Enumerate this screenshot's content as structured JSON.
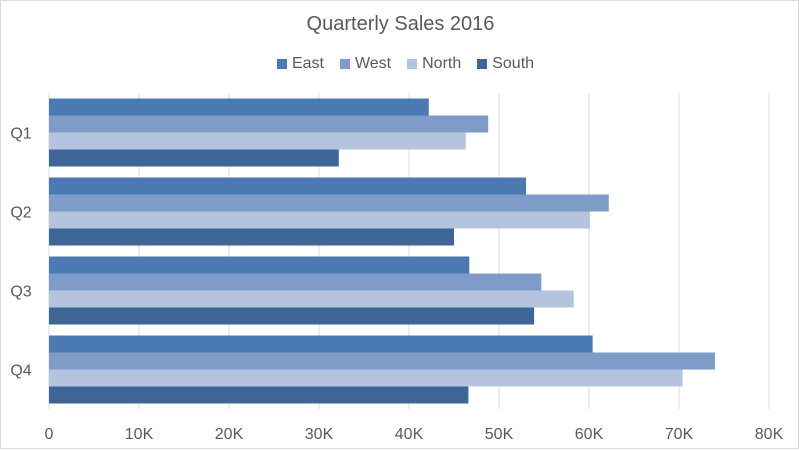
{
  "chart_data": {
    "type": "bar",
    "orientation": "horizontal",
    "title": "Quarterly Sales 2016",
    "categories": [
      "Q1",
      "Q2",
      "Q3",
      "Q4"
    ],
    "series": [
      {
        "name": "East",
        "color": "#4a7ab1",
        "values": [
          42.2,
          53,
          46.7,
          60.4
        ]
      },
      {
        "name": "West",
        "color": "#7f9cc9",
        "values": [
          48.8,
          62.2,
          54.7,
          74
        ]
      },
      {
        "name": "North",
        "color": "#b5c4de",
        "values": [
          46.3,
          60.1,
          58.3,
          70.4
        ]
      },
      {
        "name": "South",
        "color": "#3d6596",
        "values": [
          32.2,
          45,
          53.9,
          46.6
        ]
      }
    ],
    "xlim": [
      0,
      80
    ],
    "x_unit": "thousands",
    "xticks": [
      "0",
      "10K",
      "20K",
      "30K",
      "40K",
      "50K",
      "60K",
      "70K",
      "80K"
    ],
    "grid": true,
    "legend_position": "top"
  }
}
